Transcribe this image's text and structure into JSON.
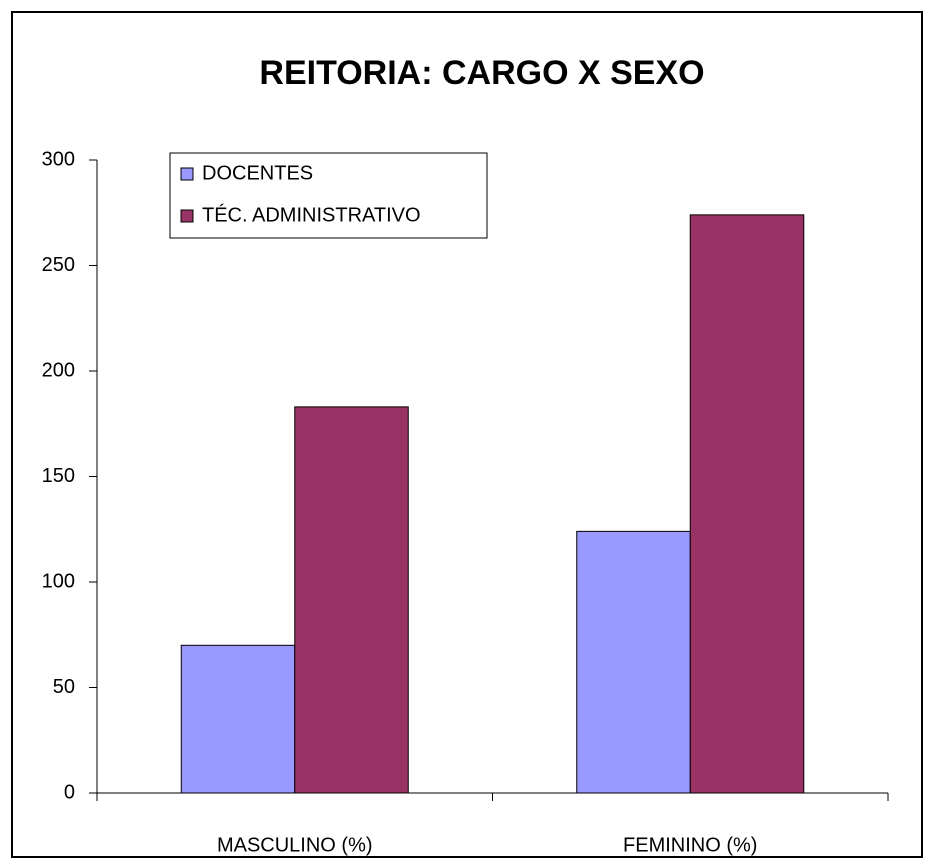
{
  "chart_data": {
    "type": "bar",
    "title": "REITORIA: CARGO X SEXO",
    "categories": [
      "MASCULINO (%)",
      "FEMININO (%)"
    ],
    "series": [
      {
        "name": "DOCENTES",
        "color": "#9999ff",
        "values": [
          70,
          124
        ]
      },
      {
        "name": "TÉC. ADMINISTRATIVO",
        "color": "#993366",
        "values": [
          183,
          274
        ]
      }
    ],
    "ylim": [
      0,
      300
    ],
    "yticks": [
      0,
      50,
      100,
      150,
      200,
      250,
      300
    ],
    "grid": false,
    "legend": "top-left"
  }
}
